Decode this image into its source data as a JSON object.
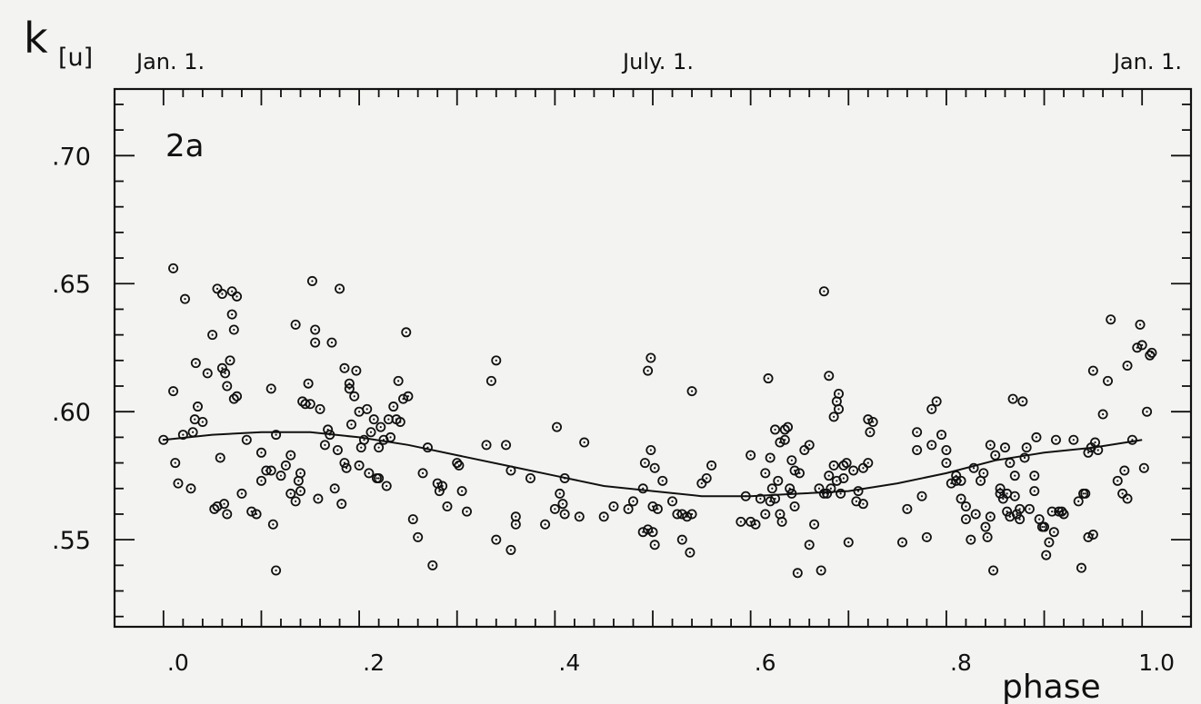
{
  "chart_data": {
    "type": "scatter",
    "panel_label": "2a",
    "ylabel_main": "k",
    "ylabel_sub": "[u]",
    "xlabel": "phase",
    "xlim": [
      -0.05,
      1.05
    ],
    "ylim": [
      0.516,
      0.726
    ],
    "x_ticks": [
      ".0",
      ".2",
      ".4",
      ".6",
      ".8",
      "1.0"
    ],
    "y_ticks": [
      ".55",
      ".60",
      ".65",
      ".70"
    ],
    "top_labels": [
      "Jan. 1.",
      "July. 1.",
      "Jan. 1."
    ],
    "grid": false,
    "fit_curve": {
      "x": [
        0.0,
        0.05,
        0.1,
        0.15,
        0.2,
        0.25,
        0.3,
        0.35,
        0.4,
        0.45,
        0.5,
        0.55,
        0.6,
        0.65,
        0.7,
        0.75,
        0.8,
        0.85,
        0.9,
        0.95,
        1.0
      ],
      "y": [
        0.589,
        0.591,
        0.592,
        0.592,
        0.59,
        0.587,
        0.583,
        0.579,
        0.575,
        0.571,
        0.569,
        0.567,
        0.567,
        0.568,
        0.569,
        0.572,
        0.576,
        0.581,
        0.584,
        0.586,
        0.589
      ]
    },
    "points": [
      [
        0.0,
        0.589
      ],
      [
        0.01,
        0.656
      ],
      [
        0.01,
        0.608
      ],
      [
        0.012,
        0.58
      ],
      [
        0.015,
        0.572
      ],
      [
        0.02,
        0.591
      ],
      [
        0.022,
        0.644
      ],
      [
        0.028,
        0.57
      ],
      [
        0.03,
        0.592
      ],
      [
        0.032,
        0.597
      ],
      [
        0.033,
        0.619
      ],
      [
        0.035,
        0.602
      ],
      [
        0.04,
        0.596
      ],
      [
        0.045,
        0.615
      ],
      [
        0.05,
        0.63
      ],
      [
        0.052,
        0.562
      ],
      [
        0.055,
        0.648
      ],
      [
        0.055,
        0.563
      ],
      [
        0.058,
        0.582
      ],
      [
        0.06,
        0.617
      ],
      [
        0.06,
        0.646
      ],
      [
        0.062,
        0.564
      ],
      [
        0.063,
        0.615
      ],
      [
        0.065,
        0.61
      ],
      [
        0.065,
        0.56
      ],
      [
        0.068,
        0.62
      ],
      [
        0.07,
        0.647
      ],
      [
        0.07,
        0.638
      ],
      [
        0.072,
        0.632
      ],
      [
        0.072,
        0.605
      ],
      [
        0.075,
        0.606
      ],
      [
        0.075,
        0.645
      ],
      [
        0.08,
        0.568
      ],
      [
        0.085,
        0.589
      ],
      [
        0.09,
        0.561
      ],
      [
        0.095,
        0.56
      ],
      [
        0.1,
        0.573
      ],
      [
        0.1,
        0.584
      ],
      [
        0.105,
        0.577
      ],
      [
        0.11,
        0.577
      ],
      [
        0.11,
        0.609
      ],
      [
        0.112,
        0.556
      ],
      [
        0.115,
        0.538
      ],
      [
        0.115,
        0.591
      ],
      [
        0.12,
        0.575
      ],
      [
        0.125,
        0.579
      ],
      [
        0.13,
        0.568
      ],
      [
        0.13,
        0.583
      ],
      [
        0.135,
        0.565
      ],
      [
        0.135,
        0.634
      ],
      [
        0.138,
        0.573
      ],
      [
        0.14,
        0.569
      ],
      [
        0.14,
        0.576
      ],
      [
        0.142,
        0.604
      ],
      [
        0.145,
        0.603
      ],
      [
        0.148,
        0.611
      ],
      [
        0.15,
        0.603
      ],
      [
        0.152,
        0.651
      ],
      [
        0.155,
        0.632
      ],
      [
        0.155,
        0.627
      ],
      [
        0.158,
        0.566
      ],
      [
        0.16,
        0.601
      ],
      [
        0.165,
        0.587
      ],
      [
        0.168,
        0.593
      ],
      [
        0.17,
        0.591
      ],
      [
        0.172,
        0.627
      ],
      [
        0.175,
        0.57
      ],
      [
        0.178,
        0.585
      ],
      [
        0.18,
        0.648
      ],
      [
        0.182,
        0.564
      ],
      [
        0.185,
        0.58
      ],
      [
        0.185,
        0.617
      ],
      [
        0.187,
        0.578
      ],
      [
        0.19,
        0.609
      ],
      [
        0.19,
        0.611
      ],
      [
        0.192,
        0.595
      ],
      [
        0.195,
        0.606
      ],
      [
        0.197,
        0.616
      ],
      [
        0.2,
        0.579
      ],
      [
        0.2,
        0.6
      ],
      [
        0.202,
        0.586
      ],
      [
        0.205,
        0.589
      ],
      [
        0.208,
        0.601
      ],
      [
        0.21,
        0.576
      ],
      [
        0.212,
        0.592
      ],
      [
        0.215,
        0.597
      ],
      [
        0.218,
        0.574
      ],
      [
        0.22,
        0.574
      ],
      [
        0.22,
        0.586
      ],
      [
        0.222,
        0.594
      ],
      [
        0.225,
        0.589
      ],
      [
        0.228,
        0.571
      ],
      [
        0.23,
        0.597
      ],
      [
        0.232,
        0.59
      ],
      [
        0.235,
        0.602
      ],
      [
        0.238,
        0.597
      ],
      [
        0.24,
        0.612
      ],
      [
        0.242,
        0.596
      ],
      [
        0.245,
        0.605
      ],
      [
        0.248,
        0.631
      ],
      [
        0.25,
        0.606
      ],
      [
        0.255,
        0.558
      ],
      [
        0.26,
        0.551
      ],
      [
        0.265,
        0.576
      ],
      [
        0.27,
        0.586
      ],
      [
        0.275,
        0.54
      ],
      [
        0.28,
        0.572
      ],
      [
        0.282,
        0.569
      ],
      [
        0.285,
        0.571
      ],
      [
        0.29,
        0.563
      ],
      [
        0.3,
        0.58
      ],
      [
        0.302,
        0.579
      ],
      [
        0.305,
        0.569
      ],
      [
        0.31,
        0.561
      ],
      [
        0.33,
        0.587
      ],
      [
        0.335,
        0.612
      ],
      [
        0.34,
        0.62
      ],
      [
        0.34,
        0.55
      ],
      [
        0.35,
        0.587
      ],
      [
        0.355,
        0.577
      ],
      [
        0.355,
        0.546
      ],
      [
        0.36,
        0.559
      ],
      [
        0.36,
        0.556
      ],
      [
        0.375,
        0.574
      ],
      [
        0.39,
        0.556
      ],
      [
        0.4,
        0.562
      ],
      [
        0.402,
        0.594
      ],
      [
        0.405,
        0.568
      ],
      [
        0.408,
        0.564
      ],
      [
        0.41,
        0.574
      ],
      [
        0.41,
        0.56
      ],
      [
        0.425,
        0.559
      ],
      [
        0.43,
        0.588
      ],
      [
        0.45,
        0.559
      ],
      [
        0.46,
        0.563
      ],
      [
        0.475,
        0.562
      ],
      [
        0.48,
        0.565
      ],
      [
        0.49,
        0.553
      ],
      [
        0.49,
        0.57
      ],
      [
        0.492,
        0.58
      ],
      [
        0.495,
        0.554
      ],
      [
        0.495,
        0.616
      ],
      [
        0.498,
        0.585
      ],
      [
        0.498,
        0.621
      ],
      [
        0.5,
        0.553
      ],
      [
        0.5,
        0.563
      ],
      [
        0.502,
        0.578
      ],
      [
        0.502,
        0.548
      ],
      [
        0.505,
        0.562
      ],
      [
        0.51,
        0.573
      ],
      [
        0.52,
        0.565
      ],
      [
        0.525,
        0.56
      ],
      [
        0.53,
        0.56
      ],
      [
        0.53,
        0.55
      ],
      [
        0.535,
        0.559
      ],
      [
        0.538,
        0.545
      ],
      [
        0.54,
        0.56
      ],
      [
        0.54,
        0.608
      ],
      [
        0.55,
        0.572
      ],
      [
        0.555,
        0.574
      ],
      [
        0.56,
        0.579
      ],
      [
        0.59,
        0.557
      ],
      [
        0.595,
        0.567
      ],
      [
        0.6,
        0.583
      ],
      [
        0.6,
        0.557
      ],
      [
        0.605,
        0.556
      ],
      [
        0.61,
        0.566
      ],
      [
        0.615,
        0.576
      ],
      [
        0.615,
        0.56
      ],
      [
        0.618,
        0.613
      ],
      [
        0.62,
        0.582
      ],
      [
        0.62,
        0.565
      ],
      [
        0.622,
        0.57
      ],
      [
        0.625,
        0.566
      ],
      [
        0.625,
        0.593
      ],
      [
        0.628,
        0.573
      ],
      [
        0.63,
        0.56
      ],
      [
        0.63,
        0.588
      ],
      [
        0.632,
        0.557
      ],
      [
        0.635,
        0.593
      ],
      [
        0.635,
        0.589
      ],
      [
        0.638,
        0.594
      ],
      [
        0.64,
        0.57
      ],
      [
        0.642,
        0.568
      ],
      [
        0.642,
        0.581
      ],
      [
        0.645,
        0.563
      ],
      [
        0.645,
        0.577
      ],
      [
        0.648,
        0.537
      ],
      [
        0.65,
        0.576
      ],
      [
        0.655,
        0.585
      ],
      [
        0.66,
        0.587
      ],
      [
        0.66,
        0.548
      ],
      [
        0.665,
        0.556
      ],
      [
        0.67,
        0.57
      ],
      [
        0.672,
        0.538
      ],
      [
        0.675,
        0.568
      ],
      [
        0.675,
        0.647
      ],
      [
        0.678,
        0.568
      ],
      [
        0.68,
        0.614
      ],
      [
        0.68,
        0.575
      ],
      [
        0.682,
        0.57
      ],
      [
        0.685,
        0.579
      ],
      [
        0.685,
        0.598
      ],
      [
        0.688,
        0.604
      ],
      [
        0.688,
        0.573
      ],
      [
        0.69,
        0.607
      ],
      [
        0.69,
        0.601
      ],
      [
        0.692,
        0.568
      ],
      [
        0.695,
        0.579
      ],
      [
        0.695,
        0.574
      ],
      [
        0.698,
        0.58
      ],
      [
        0.7,
        0.549
      ],
      [
        0.705,
        0.577
      ],
      [
        0.708,
        0.565
      ],
      [
        0.71,
        0.569
      ],
      [
        0.715,
        0.578
      ],
      [
        0.715,
        0.564
      ],
      [
        0.72,
        0.58
      ],
      [
        0.722,
        0.592
      ],
      [
        0.725,
        0.596
      ],
      [
        0.72,
        0.597
      ],
      [
        0.755,
        0.549
      ],
      [
        0.76,
        0.562
      ],
      [
        0.77,
        0.585
      ],
      [
        0.77,
        0.592
      ],
      [
        0.775,
        0.567
      ],
      [
        0.78,
        0.551
      ],
      [
        0.785,
        0.587
      ],
      [
        0.785,
        0.601
      ],
      [
        0.79,
        0.604
      ],
      [
        0.795,
        0.591
      ],
      [
        0.8,
        0.585
      ],
      [
        0.8,
        0.58
      ],
      [
        0.805,
        0.572
      ],
      [
        0.81,
        0.575
      ],
      [
        0.81,
        0.573
      ],
      [
        0.815,
        0.573
      ],
      [
        0.815,
        0.566
      ],
      [
        0.82,
        0.563
      ],
      [
        0.82,
        0.558
      ],
      [
        0.825,
        0.55
      ],
      [
        0.828,
        0.578
      ],
      [
        0.83,
        0.56
      ],
      [
        0.835,
        0.573
      ],
      [
        0.838,
        0.576
      ],
      [
        0.84,
        0.555
      ],
      [
        0.842,
        0.551
      ],
      [
        0.845,
        0.559
      ],
      [
        0.845,
        0.587
      ],
      [
        0.848,
        0.538
      ],
      [
        0.85,
        0.583
      ],
      [
        0.855,
        0.568
      ],
      [
        0.855,
        0.57
      ],
      [
        0.858,
        0.566
      ],
      [
        0.86,
        0.586
      ],
      [
        0.862,
        0.561
      ],
      [
        0.862,
        0.568
      ],
      [
        0.865,
        0.559
      ],
      [
        0.865,
        0.58
      ],
      [
        0.868,
        0.605
      ],
      [
        0.87,
        0.575
      ],
      [
        0.87,
        0.567
      ],
      [
        0.872,
        0.56
      ],
      [
        0.875,
        0.562
      ],
      [
        0.875,
        0.558
      ],
      [
        0.878,
        0.604
      ],
      [
        0.88,
        0.582
      ],
      [
        0.882,
        0.586
      ],
      [
        0.885,
        0.562
      ],
      [
        0.89,
        0.575
      ],
      [
        0.89,
        0.569
      ],
      [
        0.892,
        0.59
      ],
      [
        0.895,
        0.558
      ],
      [
        0.898,
        0.555
      ],
      [
        0.9,
        0.555
      ],
      [
        0.902,
        0.544
      ],
      [
        0.905,
        0.549
      ],
      [
        0.908,
        0.561
      ],
      [
        0.91,
        0.553
      ],
      [
        0.912,
        0.589
      ],
      [
        0.915,
        0.561
      ],
      [
        0.918,
        0.561
      ],
      [
        0.92,
        0.56
      ],
      [
        0.93,
        0.589
      ],
      [
        0.935,
        0.565
      ],
      [
        0.938,
        0.539
      ],
      [
        0.94,
        0.568
      ],
      [
        0.942,
        0.568
      ],
      [
        0.945,
        0.551
      ],
      [
        0.945,
        0.584
      ],
      [
        0.948,
        0.586
      ],
      [
        0.95,
        0.552
      ],
      [
        0.95,
        0.616
      ],
      [
        0.952,
        0.588
      ],
      [
        0.955,
        0.585
      ],
      [
        0.96,
        0.599
      ],
      [
        0.965,
        0.612
      ],
      [
        0.968,
        0.636
      ],
      [
        0.975,
        0.573
      ],
      [
        0.98,
        0.568
      ],
      [
        0.982,
        0.577
      ],
      [
        0.985,
        0.566
      ],
      [
        0.985,
        0.618
      ],
      [
        0.99,
        0.589
      ],
      [
        0.995,
        0.625
      ],
      [
        0.998,
        0.634
      ],
      [
        1.0,
        0.626
      ],
      [
        1.002,
        0.578
      ],
      [
        1.005,
        0.6
      ],
      [
        1.008,
        0.622
      ],
      [
        1.01,
        0.623
      ]
    ]
  }
}
